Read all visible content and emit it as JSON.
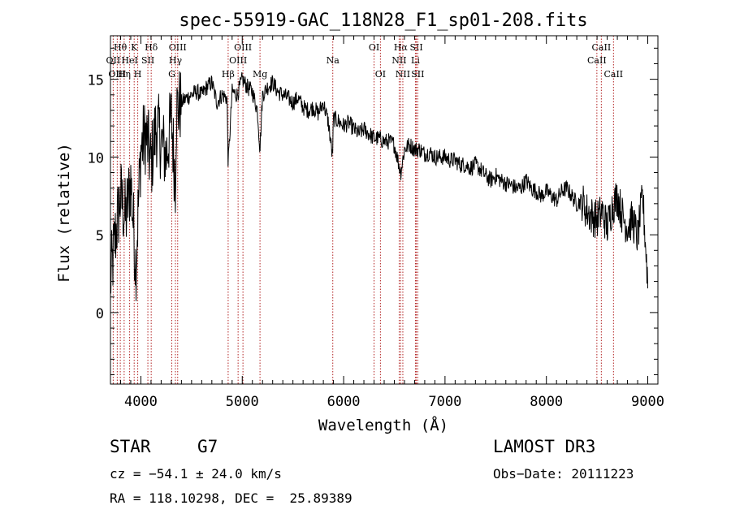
{
  "chart_data": {
    "type": "line",
    "title": "spec-55919-GAC_118N28_F1_sp01-208.fits",
    "xlabel": "Wavelength (Å)",
    "ylabel": "Flux (relative)",
    "xlim": [
      3700,
      9100
    ],
    "ylim": [
      -4.6,
      17.8
    ],
    "xticks": [
      4000,
      5000,
      6000,
      7000,
      8000,
      9000
    ],
    "yticks": [
      0,
      5,
      10,
      15
    ],
    "series": [
      {
        "name": "Flux",
        "x": [
          3700,
          3750,
          3800,
          3850,
          3900,
          3950,
          4000,
          4050,
          4100,
          4150,
          4200,
          4250,
          4300,
          4340,
          4350,
          4400,
          4450,
          4500,
          4550,
          4600,
          4650,
          4700,
          4750,
          4800,
          4850,
          4861,
          4900,
          4950,
          5000,
          5050,
          5100,
          5150,
          5175,
          5200,
          5250,
          5300,
          5350,
          5400,
          5450,
          5500,
          5550,
          5600,
          5650,
          5700,
          5750,
          5800,
          5850,
          5890,
          5900,
          5950,
          6000,
          6050,
          6100,
          6150,
          6200,
          6250,
          6300,
          6350,
          6400,
          6450,
          6500,
          6563,
          6600,
          6650,
          6700,
          6750,
          6800,
          6850,
          6900,
          6950,
          7000,
          7050,
          7100,
          7150,
          7200,
          7250,
          7300,
          7350,
          7400,
          7450,
          7500,
          7550,
          7600,
          7650,
          7700,
          7750,
          7800,
          7850,
          7900,
          7950,
          8000,
          8050,
          8100,
          8150,
          8200,
          8250,
          8300,
          8350,
          8400,
          8450,
          8500,
          8550,
          8600,
          8650,
          8700,
          8750,
          8800,
          8850,
          8900,
          8950,
          9000
        ],
        "y": [
          2.0,
          5.0,
          7.5,
          6.0,
          8.5,
          3.0,
          10.5,
          11.5,
          9.5,
          12.0,
          11.0,
          10.0,
          12.5,
          8.5,
          13.0,
          13.5,
          13.8,
          14.0,
          14.2,
          14.0,
          14.5,
          14.8,
          13.5,
          14.0,
          13.8,
          9.5,
          14.2,
          14.0,
          15.0,
          14.5,
          14.2,
          13.0,
          10.5,
          14.0,
          14.5,
          14.8,
          14.2,
          14.0,
          13.8,
          13.5,
          13.8,
          13.2,
          13.0,
          13.2,
          12.8,
          13.5,
          12.2,
          10.0,
          12.5,
          12.3,
          12.0,
          12.2,
          11.8,
          11.5,
          11.8,
          11.5,
          11.2,
          11.2,
          11.0,
          11.0,
          10.8,
          9.0,
          10.5,
          10.8,
          10.5,
          10.5,
          10.2,
          10.3,
          10.0,
          10.0,
          10.0,
          9.8,
          9.8,
          9.5,
          9.5,
          9.3,
          9.5,
          9.2,
          8.8,
          8.5,
          8.8,
          8.5,
          8.3,
          8.2,
          8.0,
          8.0,
          8.5,
          8.0,
          7.8,
          7.5,
          7.8,
          7.5,
          7.2,
          7.8,
          8.0,
          7.5,
          7.0,
          7.2,
          6.5,
          6.2,
          6.0,
          6.5,
          5.5,
          6.8,
          7.5,
          6.2,
          5.5,
          6.0,
          4.8,
          7.5,
          2.0
        ]
      }
    ],
    "lines": [
      {
        "label": "Hθ",
        "x": 3797,
        "row": 0
      },
      {
        "label": "OII",
        "x": 3727,
        "row": 1
      },
      {
        "label": "OIII",
        "x": 3767,
        "row": 2
      },
      {
        "label": "K",
        "x": 3934,
        "row": 0
      },
      {
        "label": "HeI",
        "x": 3889,
        "row": 1
      },
      {
        "label": "Hη",
        "x": 3835,
        "row": 2
      },
      {
        "label": "Hδ",
        "x": 4102,
        "row": 0
      },
      {
        "label": "SII",
        "x": 4069,
        "row": 1
      },
      {
        "label": "H",
        "x": 3969,
        "row": 2
      },
      {
        "label": "OIII",
        "x": 4363,
        "row": 0
      },
      {
        "label": "Hγ",
        "x": 4341,
        "row": 1
      },
      {
        "label": "G",
        "x": 4305,
        "row": 2
      },
      {
        "label": "OIII",
        "x": 5007,
        "row": 0
      },
      {
        "label": "OIII",
        "x": 4959,
        "row": 1
      },
      {
        "label": "Hβ",
        "x": 4861,
        "row": 2
      },
      {
        "label": "Mg",
        "x": 5175,
        "row": 2
      },
      {
        "label": "Na",
        "x": 5893,
        "row": 1
      },
      {
        "label": "OI",
        "x": 6300,
        "row": 0
      },
      {
        "label": "OI",
        "x": 6363,
        "row": 2
      },
      {
        "label": "Hα",
        "x": 6563,
        "row": 0
      },
      {
        "label": "NII",
        "x": 6548,
        "row": 1
      },
      {
        "label": "NII",
        "x": 6584,
        "row": 2
      },
      {
        "label": "SII",
        "x": 6717,
        "row": 0
      },
      {
        "label": "Li",
        "x": 6708,
        "row": 1
      },
      {
        "label": "SII",
        "x": 6731,
        "row": 2
      },
      {
        "label": "CaII",
        "x": 8542,
        "row": 0
      },
      {
        "label": "CaII",
        "x": 8498,
        "row": 1
      },
      {
        "label": "CaII",
        "x": 8662,
        "row": 2
      }
    ]
  },
  "info": {
    "object_type": "STAR",
    "subclass": "G7",
    "survey": "LAMOST DR3",
    "cz": "cz = −54.1 ± 24.0 km/s",
    "obs_date": "Obs−Date: 20111223",
    "coords": "RA = 118.10298, DEC =  25.89389"
  }
}
